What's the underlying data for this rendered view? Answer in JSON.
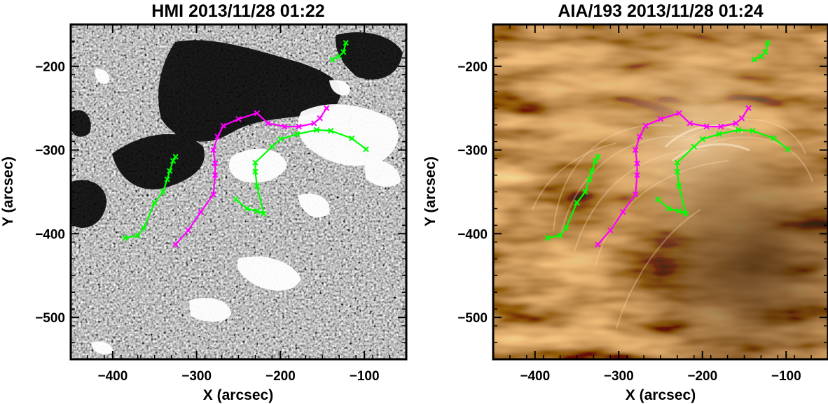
{
  "colors": {
    "neutral_line": "#ff00ff",
    "other_line": "#00ff00",
    "hmi_background": "#7a7a7a",
    "aia_background": "#a8733a"
  },
  "panels": [
    {
      "id": "hmi",
      "title": "HMI 2013/11/28 01:22",
      "xlabel": "X (arcsec)",
      "ylabel": "Y (arcsec)",
      "xlim": [
        -450,
        -50
      ],
      "ylim": [
        -550,
        -150
      ],
      "xticks": [
        -400,
        -300,
        -200,
        -100
      ],
      "yticks": [
        -200,
        -300,
        -400,
        -500
      ],
      "xtick_labels": [
        "−400",
        "−300",
        "−200",
        "−100"
      ],
      "ytick_labels": [
        "−200",
        "−300",
        "−400",
        "−500"
      ]
    },
    {
      "id": "aia",
      "title": "AIA/193 2013/11/28 01:24",
      "xlabel": "X (arcsec)",
      "ylabel": "Y (arcsec)",
      "xlim": [
        -450,
        -50
      ],
      "ylim": [
        -550,
        -150
      ],
      "xticks": [
        -400,
        -300,
        -200,
        -100
      ],
      "yticks": [
        -200,
        -300,
        -400,
        -500
      ],
      "xtick_labels": [
        "−400",
        "−300",
        "−200",
        "−100"
      ],
      "ytick_labels": [
        "−200",
        "−300",
        "−400",
        "−500"
      ]
    }
  ],
  "chart_data": {
    "type": "line",
    "series": [
      {
        "color": "#ff00ff",
        "points": [
          [
            -325,
            -413
          ],
          [
            -310,
            -396
          ],
          [
            -295,
            -374
          ],
          [
            -280,
            -353
          ],
          [
            -278,
            -330
          ],
          [
            -278,
            -316
          ],
          [
            -280,
            -300
          ],
          [
            -275,
            -284
          ],
          [
            -268,
            -271
          ],
          [
            -250,
            -263
          ],
          [
            -228,
            -256
          ],
          [
            -215,
            -268
          ],
          [
            -195,
            -272
          ],
          [
            -178,
            -272
          ],
          [
            -160,
            -268
          ],
          [
            -153,
            -262
          ],
          [
            -145,
            -250
          ]
        ]
      },
      {
        "color": "#00ff00",
        "points": [
          [
            -385,
            -405
          ],
          [
            -370,
            -402
          ],
          [
            -363,
            -393
          ],
          [
            -350,
            -363
          ],
          [
            -340,
            -350
          ],
          [
            -335,
            -335
          ],
          [
            -332,
            -325
          ],
          [
            -328,
            -313
          ],
          [
            -325,
            -308
          ]
        ]
      },
      {
        "color": "#00ff00",
        "points": [
          [
            -253,
            -359
          ],
          [
            -240,
            -370
          ],
          [
            -228,
            -373
          ],
          [
            -220,
            -376
          ],
          [
            -228,
            -343
          ],
          [
            -230,
            -326
          ],
          [
            -230,
            -315
          ],
          [
            -210,
            -296
          ],
          [
            -200,
            -287
          ],
          [
            -180,
            -281
          ],
          [
            -157,
            -276
          ],
          [
            -140,
            -277
          ],
          [
            -115,
            -286
          ],
          [
            -98,
            -299
          ]
        ]
      },
      {
        "color": "#00ff00",
        "points": [
          [
            -138,
            -192
          ],
          [
            -130,
            -188
          ],
          [
            -125,
            -183
          ],
          [
            -122,
            -172
          ]
        ]
      }
    ]
  }
}
